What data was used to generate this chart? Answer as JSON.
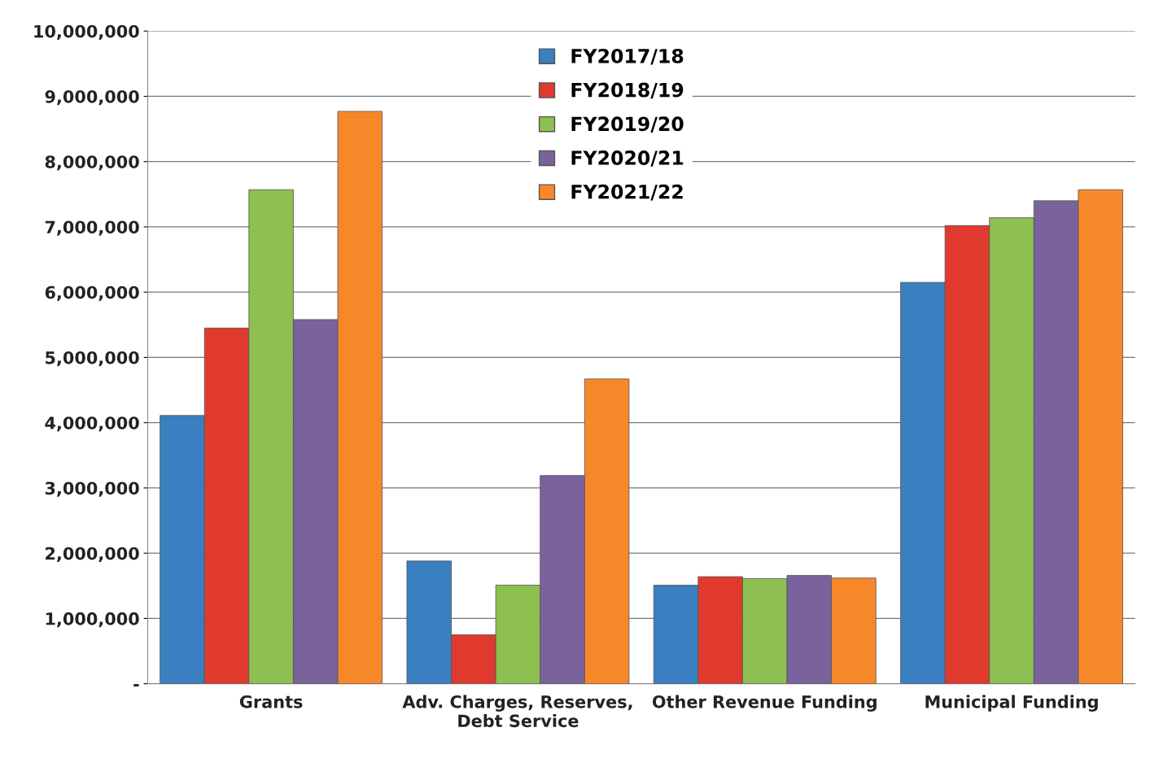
{
  "chart_data": {
    "type": "bar",
    "categories": [
      "Grants",
      "Adv. Charges, Reserves,\nDebt Service",
      "Other Revenue Funding",
      "Municipal Funding"
    ],
    "series": [
      {
        "name": "FY2017/18",
        "color": "#3a7fc0",
        "values": [
          4110000,
          1880000,
          1510000,
          6150000
        ]
      },
      {
        "name": "FY2018/19",
        "color": "#e03a2e",
        "values": [
          5450000,
          750000,
          1640000,
          7020000
        ]
      },
      {
        "name": "FY2019/20",
        "color": "#8dc050",
        "values": [
          7570000,
          1510000,
          1610000,
          7140000
        ]
      },
      {
        "name": "FY2020/21",
        "color": "#7a629c",
        "values": [
          5580000,
          3190000,
          1660000,
          7400000
        ]
      },
      {
        "name": "FY2021/22",
        "color": "#f7882a",
        "values": [
          8770000,
          4670000,
          1620000,
          7570000
        ]
      }
    ],
    "ylim": [
      0,
      10000000
    ],
    "yticks": [
      {
        "value": 0,
        "label": "-"
      },
      {
        "value": 1000000,
        "label": "1,000,000"
      },
      {
        "value": 2000000,
        "label": "2,000,000"
      },
      {
        "value": 3000000,
        "label": "3,000,000"
      },
      {
        "value": 4000000,
        "label": "4,000,000"
      },
      {
        "value": 5000000,
        "label": "5,000,000"
      },
      {
        "value": 6000000,
        "label": "6,000,000"
      },
      {
        "value": 7000000,
        "label": "7,000,000"
      },
      {
        "value": 8000000,
        "label": "8,000,000"
      },
      {
        "value": 9000000,
        "label": "9,000,000"
      },
      {
        "value": 10000000,
        "label": "10,000,000"
      }
    ],
    "grid": "y",
    "legend": "top"
  }
}
